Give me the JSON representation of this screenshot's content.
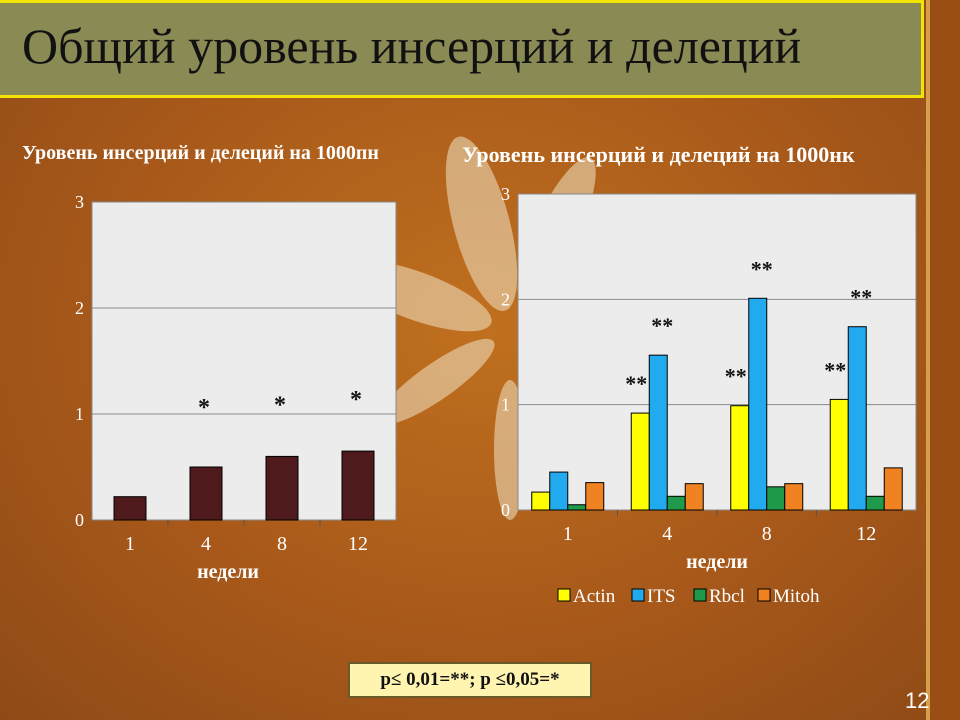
{
  "slide": {
    "title": "Общий уровень инсерций и делеций",
    "page_number": "12",
    "significance_note": "p≤ 0,01=**; p ≤0,05=*"
  },
  "colors": {
    "left_bar": "#4e1a1c",
    "actin": "#ffff00",
    "its": "#22aaee",
    "rbcl": "#1e9a4a",
    "mitoh": "#f08222"
  },
  "chart_data": [
    {
      "type": "bar",
      "title": "Уровень инсерций и делеций на 1000пн",
      "xlabel": "недели",
      "ylabel": "",
      "categories": [
        "1",
        "4",
        "8",
        "12"
      ],
      "ylim": [
        0,
        3
      ],
      "yticks": [
        "0",
        "1",
        "2",
        "3"
      ],
      "series": [
        {
          "values": [
            0.22,
            0.5,
            0.6,
            0.65
          ]
        }
      ],
      "annotations": [
        "",
        "*",
        "*",
        "*"
      ],
      "grid": true,
      "legend": "none"
    },
    {
      "type": "bar",
      "title": "Уровень инсерций и делеций на 1000нк",
      "xlabel": "недели",
      "ylabel": "",
      "categories": [
        "1",
        "4",
        "8",
        "12"
      ],
      "ylim": [
        0,
        3
      ],
      "yticks": [
        "0",
        "1",
        "2",
        "3"
      ],
      "series": [
        {
          "name": "Actin",
          "values": [
            0.17,
            0.92,
            0.99,
            1.05
          ],
          "annotations": [
            "",
            "**",
            "**",
            "**"
          ]
        },
        {
          "name": "ITS",
          "values": [
            0.36,
            1.47,
            2.01,
            1.74
          ],
          "annotations": [
            "",
            "**",
            "**",
            "**"
          ]
        },
        {
          "name": "Rbcl",
          "values": [
            0.05,
            0.13,
            0.22,
            0.13
          ],
          "annotations": [
            "",
            "",
            "",
            ""
          ]
        },
        {
          "name": "Mitoh",
          "values": [
            0.26,
            0.25,
            0.25,
            0.4
          ],
          "annotations": [
            "",
            "",
            "",
            ""
          ]
        }
      ],
      "grid": true,
      "legend": "bottom"
    }
  ]
}
